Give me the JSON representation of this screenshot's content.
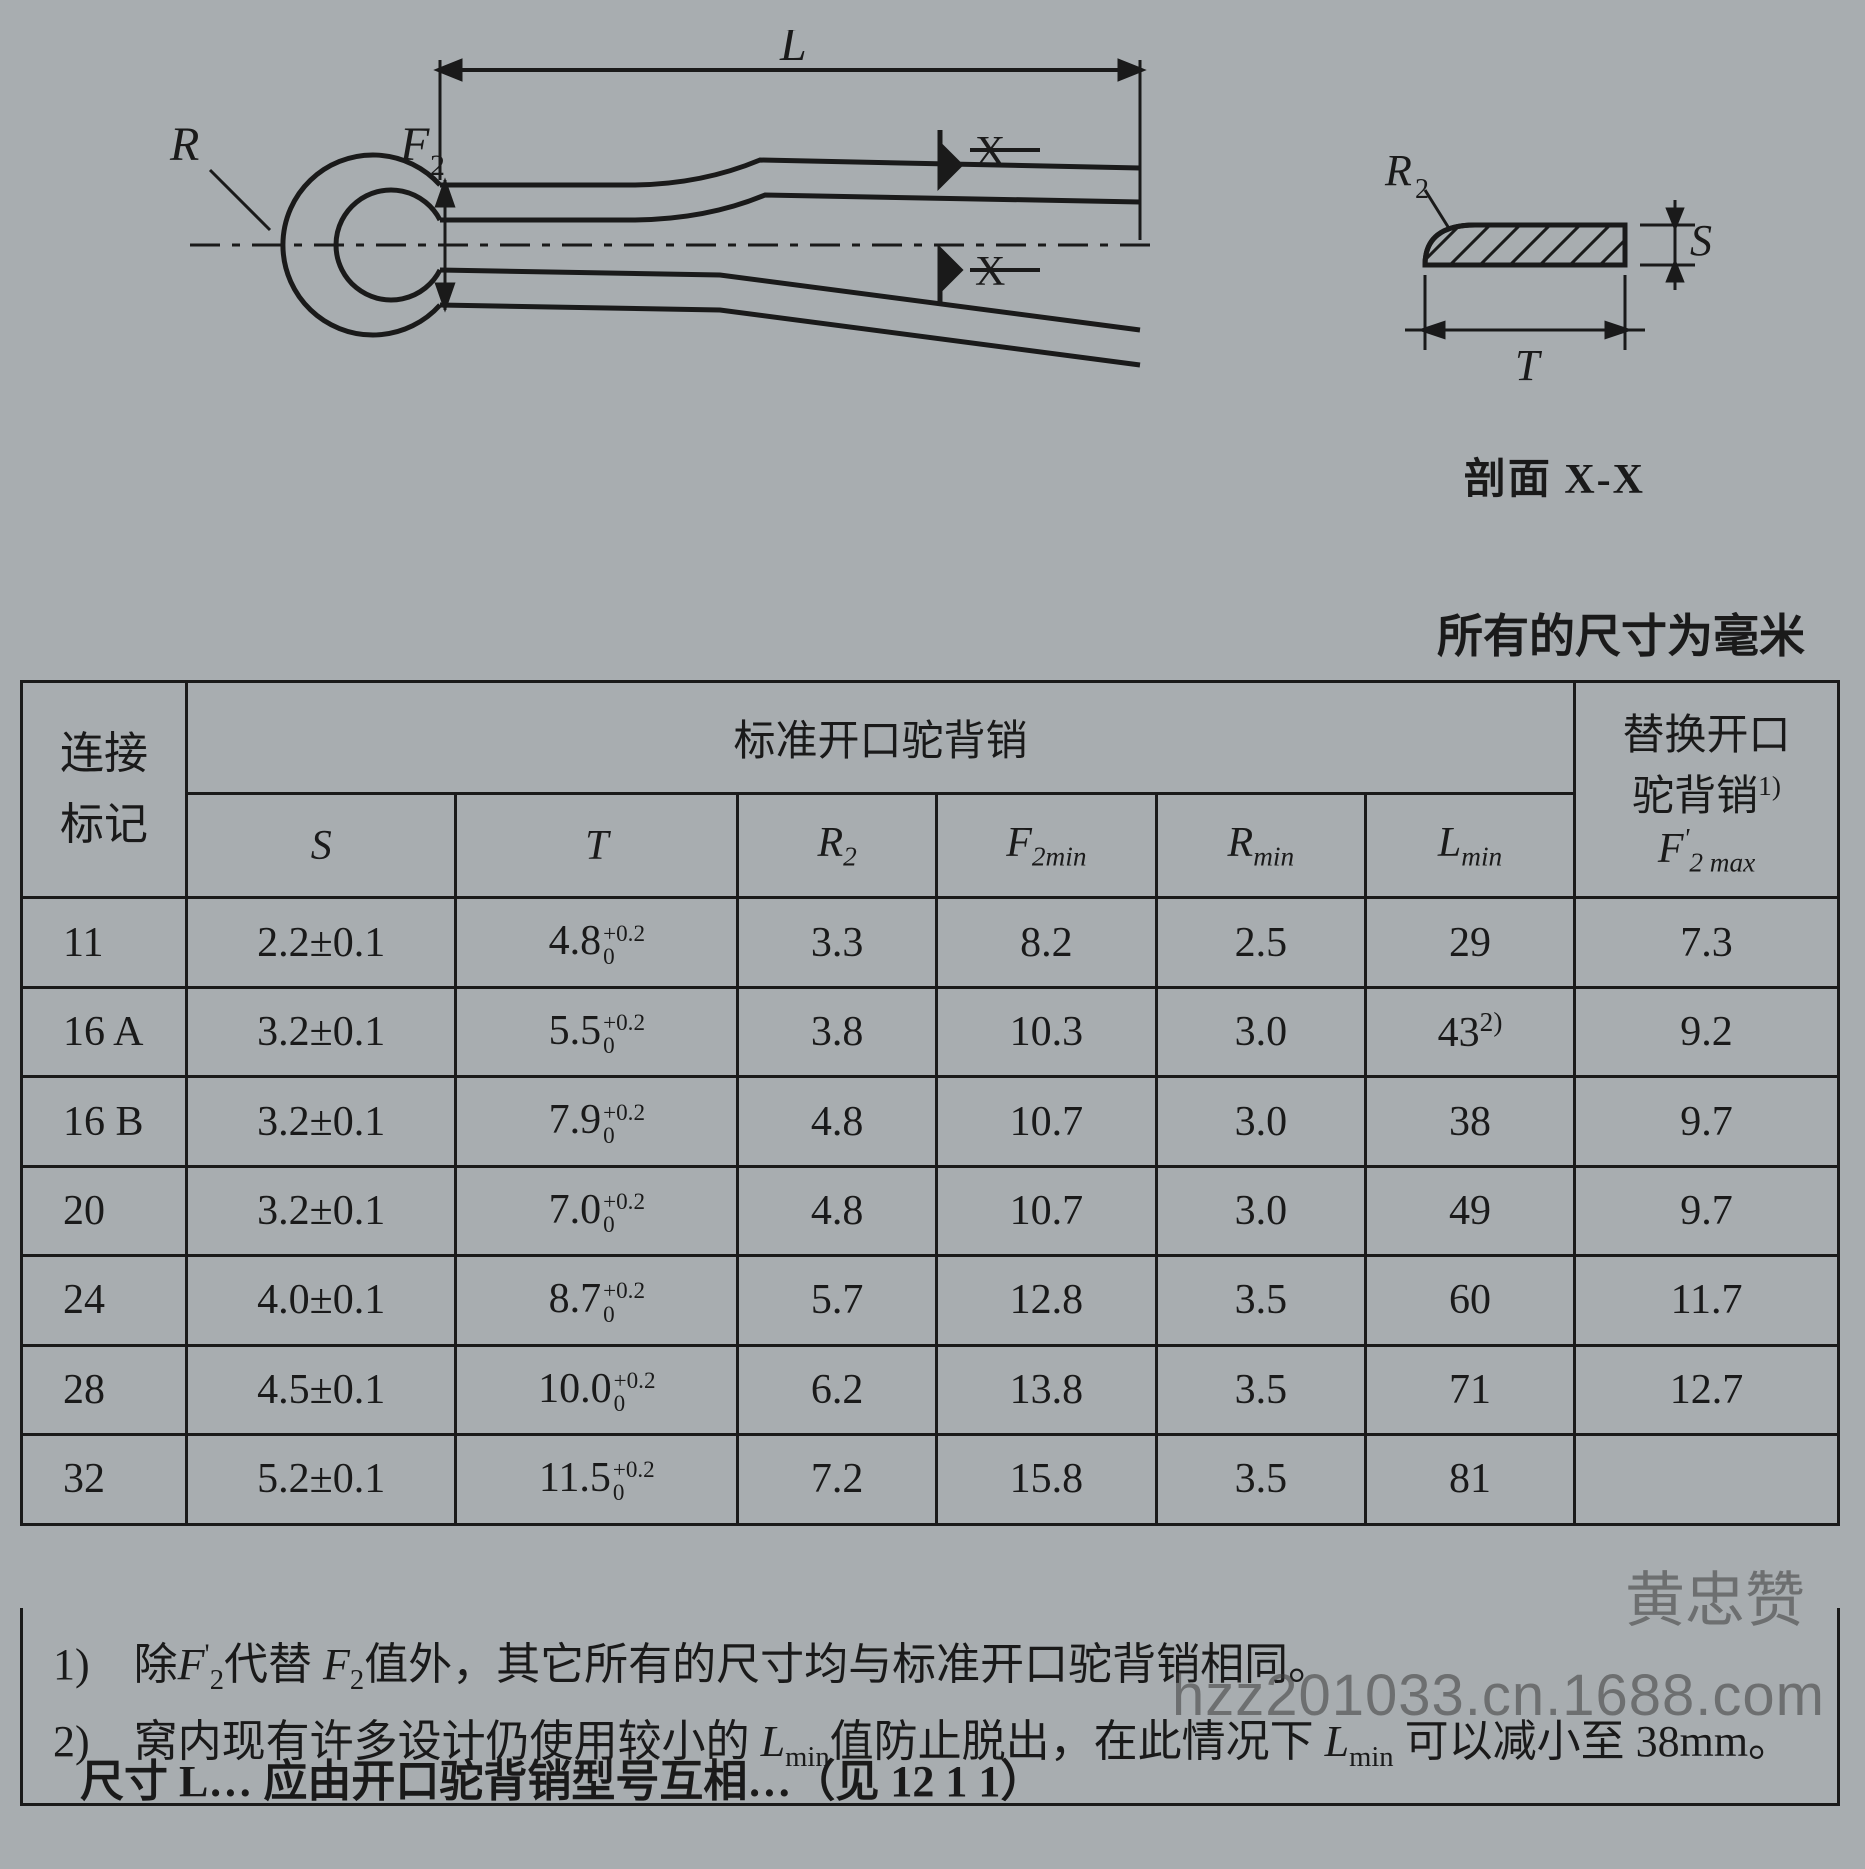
{
  "diagram": {
    "dim_L": "L",
    "dim_R": "R",
    "dim_F2": "F",
    "dim_F2_sub": "2",
    "section_mark": "X",
    "cross_section_R2": "R",
    "cross_section_R2_sub": "2",
    "cross_section_S": "S",
    "cross_section_T": "T",
    "section_caption": "剖面 X-X"
  },
  "unit_note": "所有的尺寸为毫米",
  "table": {
    "header_mark_line1": "连接",
    "header_mark_line2": "标记",
    "header_standard_group": "标准开口驼背销",
    "header_replace_group_line1": "替换开口",
    "header_replace_group_line2": "驼背销",
    "header_replace_group_sup": "1)",
    "col_S": "S",
    "col_T": "T",
    "col_R2": "R",
    "col_R2_sub": "2",
    "col_F2min": "F",
    "col_F2min_sub": "2min",
    "col_Rmin": "R",
    "col_Rmin_sub": "min",
    "col_Lmin": "L",
    "col_Lmin_sub": "min",
    "col_F2max": "F",
    "col_F2max_sub": "2 max",
    "col_F2max_sup": "'",
    "tol_upper": "+0.2",
    "tol_lower": "0",
    "rows": [
      {
        "mark": "11",
        "S": "2.2±0.1",
        "T_base": "4.8",
        "R2": "3.3",
        "F2min": "8.2",
        "Rmin": "2.5",
        "Lmin": "29",
        "Lmin_sup": "",
        "F2max": "7.3"
      },
      {
        "mark": "16 A",
        "S": "3.2±0.1",
        "T_base": "5.5",
        "R2": "3.8",
        "F2min": "10.3",
        "Rmin": "3.0",
        "Lmin": "43",
        "Lmin_sup": "2)",
        "F2max": "9.2"
      },
      {
        "mark": "16 B",
        "S": "3.2±0.1",
        "T_base": "7.9",
        "R2": "4.8",
        "F2min": "10.7",
        "Rmin": "3.0",
        "Lmin": "38",
        "Lmin_sup": "",
        "F2max": "9.7"
      },
      {
        "mark": "20",
        "S": "3.2±0.1",
        "T_base": "7.0",
        "R2": "4.8",
        "F2min": "10.7",
        "Rmin": "3.0",
        "Lmin": "49",
        "Lmin_sup": "",
        "F2max": "9.7"
      },
      {
        "mark": "24",
        "S": "4.0±0.1",
        "T_base": "8.7",
        "R2": "5.7",
        "F2min": "12.8",
        "Rmin": "3.5",
        "Lmin": "60",
        "Lmin_sup": "",
        "F2max": "11.7"
      },
      {
        "mark": "28",
        "S": "4.5±0.1",
        "T_base": "10.0",
        "R2": "6.2",
        "F2min": "13.8",
        "Rmin": "3.5",
        "Lmin": "71",
        "Lmin_sup": "",
        "F2max": "12.7"
      },
      {
        "mark": "32",
        "S": "5.2±0.1",
        "T_base": "11.5",
        "R2": "7.2",
        "F2min": "15.8",
        "Rmin": "3.5",
        "Lmin": "81",
        "Lmin_sup": "",
        "F2max": ""
      }
    ]
  },
  "footnotes": {
    "note1_prefix": "1)　除",
    "note1_F2p": "F",
    "note1_F2p_sub": "2",
    "note1_F2p_sup": "'",
    "note1_mid": "代替 ",
    "note1_F2": "F",
    "note1_F2_sub": "2",
    "note1_suffix": "值外，其它所有的尺寸均与标准开口驼背销相同。",
    "note2_prefix": "2)　窝内现有许多设计仍使用较小的 ",
    "note2_Lmin": "L",
    "note2_Lmin_sub": "min",
    "note2_mid": "值防止脱出，在此情况下 ",
    "note2_Lmin2": "L",
    "note2_Lmin2_sub": "min",
    "note2_suffix": " 可以减小至 38mm。"
  },
  "cutoff_text": "尺寸 L… 应由开口驼背销型号互相…（见 12 1 1）",
  "watermark_name": "黄忠赞",
  "watermark_url": "hzz201033.cn.1688.com",
  "colors": {
    "background": "#a8adb0",
    "line": "#1a1a1a",
    "watermark": "rgba(60,60,60,0.55)"
  }
}
